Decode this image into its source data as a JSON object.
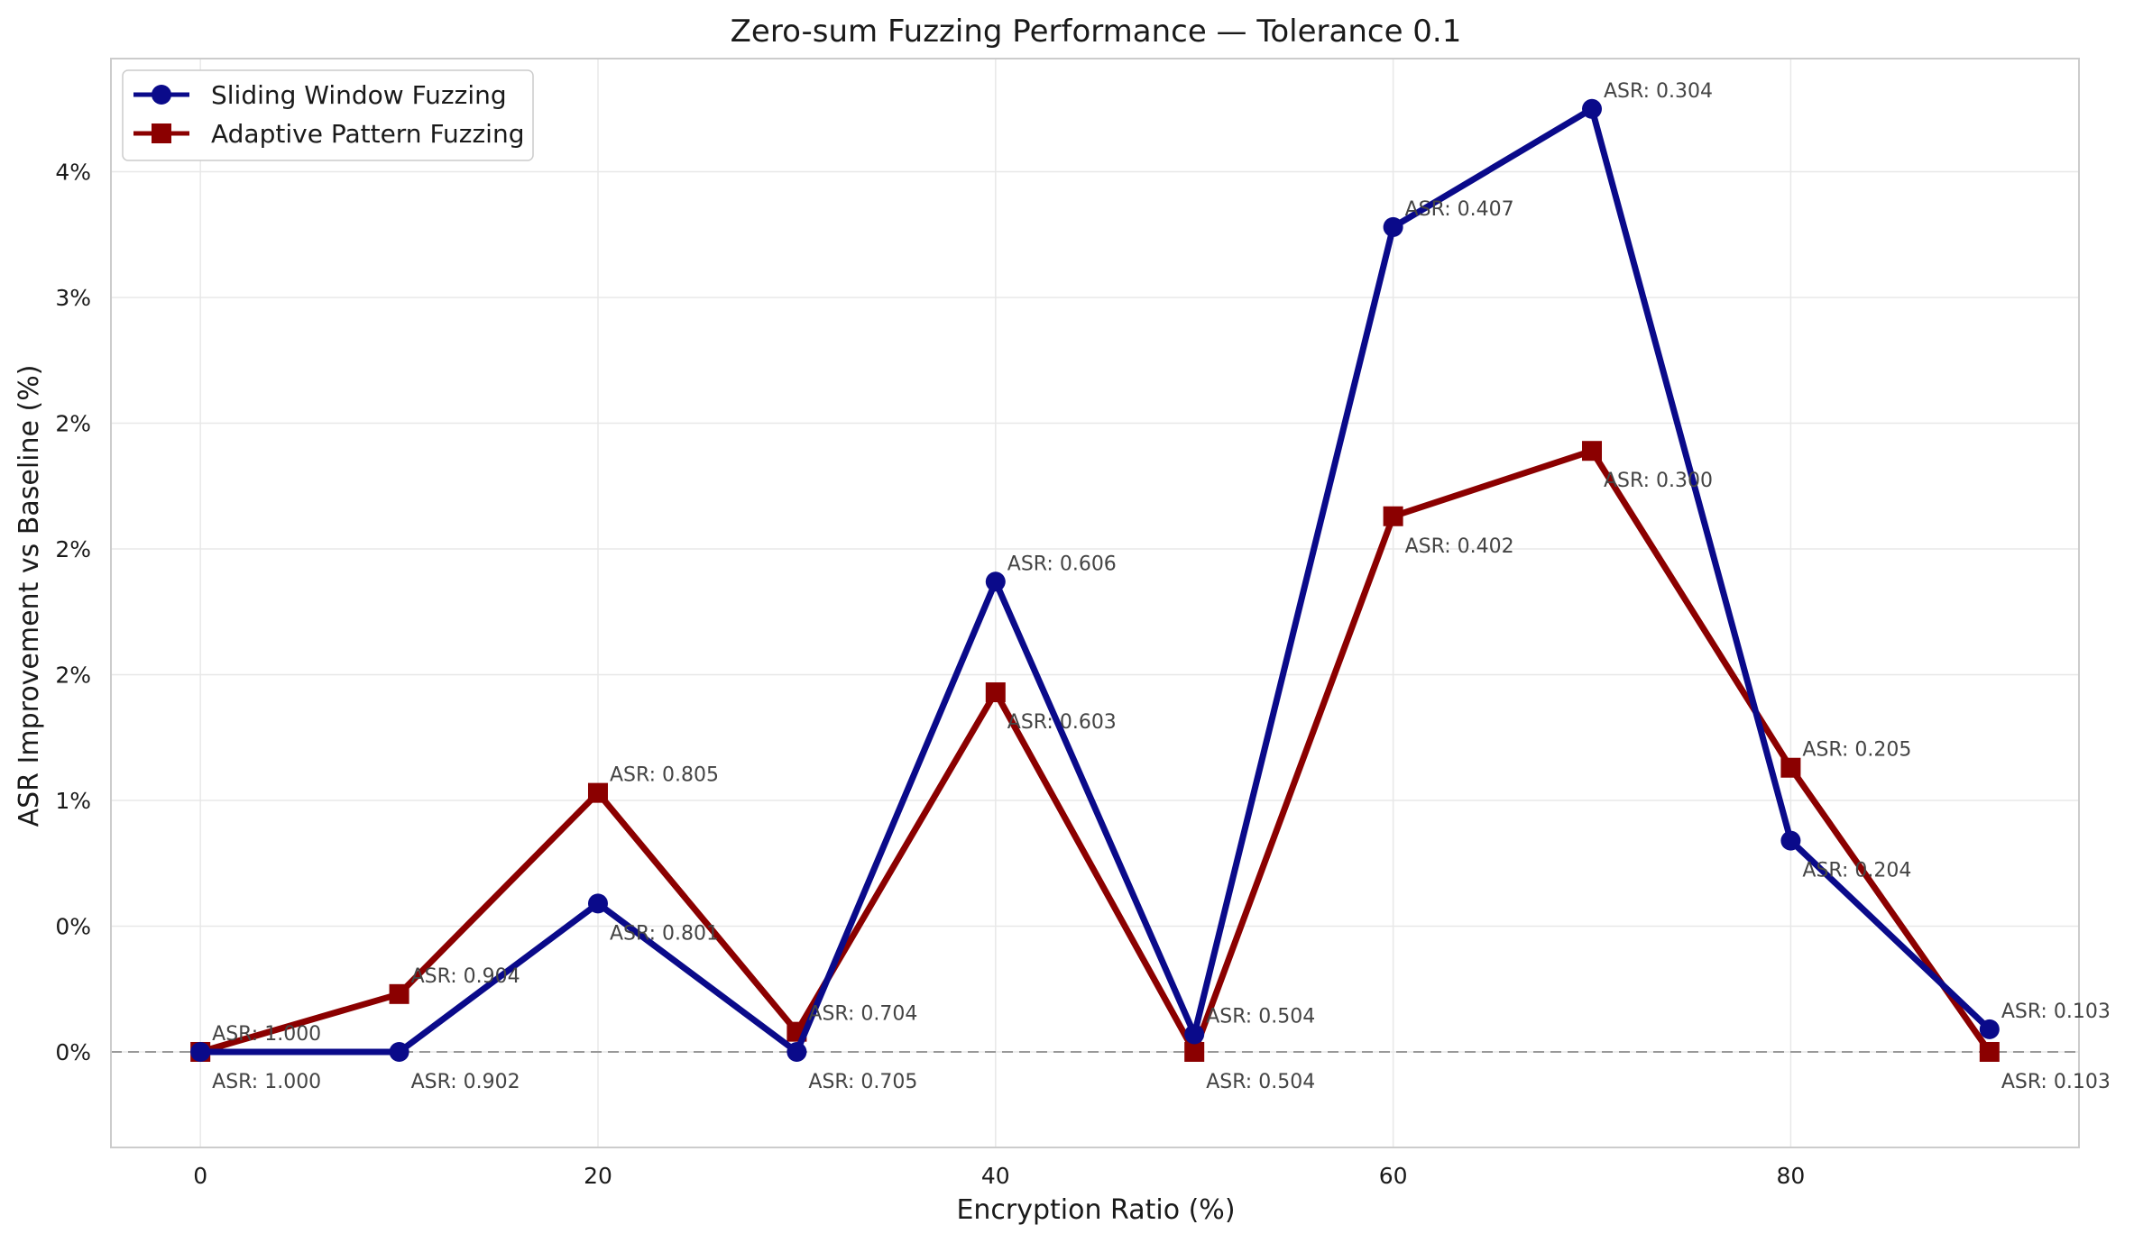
{
  "chart_data": {
    "type": "line",
    "title": "Zero-sum Fuzzing Performance — Tolerance 0.1",
    "xlabel": "Encryption Ratio (%)",
    "ylabel": "ASR Improvement vs Baseline (%)",
    "xlim": [
      -4.5,
      94.5
    ],
    "ylim": [
      -0.38,
      3.95
    ],
    "grid": true,
    "legend_position": "top-left",
    "x_ticks": [
      {
        "value": 0,
        "label": "0"
      },
      {
        "value": 20,
        "label": "20"
      },
      {
        "value": 40,
        "label": "40"
      },
      {
        "value": 60,
        "label": "60"
      },
      {
        "value": 80,
        "label": "80"
      }
    ],
    "y_ticks": [
      {
        "value": 0,
        "label": "0%"
      },
      {
        "value": 0.5,
        "label": "0%"
      },
      {
        "value": 1.0,
        "label": "1%"
      },
      {
        "value": 1.5,
        "label": "2%"
      },
      {
        "value": 2.0,
        "label": "2%"
      },
      {
        "value": 2.5,
        "label": "2%"
      },
      {
        "value": 3.0,
        "label": "3%"
      },
      {
        "value": 3.5,
        "label": "4%"
      }
    ],
    "x": [
      0,
      10,
      20,
      30,
      40,
      50,
      60,
      70,
      80,
      90
    ],
    "baseline": 0,
    "series": [
      {
        "name": "Sliding Window Fuzzing",
        "color": "#0a0a8a",
        "marker": "circle",
        "values": [
          0.0,
          0.0,
          0.59,
          0.0,
          1.87,
          0.07,
          3.28,
          3.75,
          0.84,
          0.09
        ],
        "labels": [
          "ASR: 1.000",
          "ASR: 0.902",
          "ASR: 0.801",
          "ASR: 0.705",
          "ASR: 0.606",
          "ASR: 0.504",
          "ASR: 0.407",
          "ASR: 0.304",
          "ASR: 0.204",
          "ASR: 0.103"
        ]
      },
      {
        "name": "Adaptive Pattern Fuzzing",
        "color": "#8b0000",
        "marker": "square",
        "values": [
          0.0,
          0.23,
          1.03,
          0.08,
          1.43,
          0.0,
          2.13,
          2.39,
          1.13,
          0.0
        ],
        "labels": [
          "ASR: 1.000",
          "ASR: 0.904",
          "ASR: 0.805",
          "ASR: 0.704",
          "ASR: 0.603",
          "ASR: 0.504",
          "ASR: 0.402",
          "ASR: 0.300",
          "ASR: 0.205",
          "ASR: 0.103"
        ]
      }
    ]
  }
}
